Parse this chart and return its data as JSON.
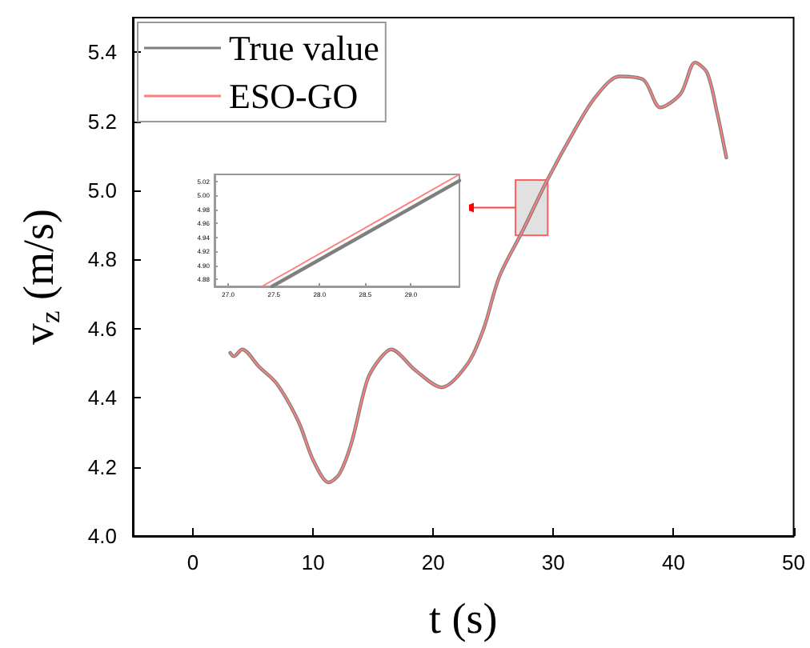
{
  "chart_data": [
    {
      "type": "line",
      "xlabel": "t (s)",
      "ylabel": "v$_{z}$ (m/s)",
      "xlim": [
        -5,
        50
      ],
      "xticks": [
        0,
        10,
        20,
        30,
        40,
        50
      ],
      "ylim": [
        4.0,
        5.5
      ],
      "yticks": [
        {
          "value": 4.0,
          "label": "4.0"
        },
        4.2,
        4.4,
        4.6,
        4.8,
        {
          "value": 5.0,
          "label": "5.0"
        },
        5.2,
        5.4
      ],
      "grid": false,
      "legend": "top left",
      "marker": "none",
      "line_style": "solid",
      "series": [
        {
          "name": "True value",
          "color": "#7f7f7f",
          "x": [
            3.1,
            3.4,
            4.1,
            5.5,
            7.0,
            8.8,
            10.0,
            11.3,
            12.2,
            13.2,
            14.5,
            15.5,
            16.5,
            18.5,
            20.7,
            22.9,
            24.2,
            25.5,
            27.4,
            29.5,
            31.7,
            33.5,
            35.5,
            37.5,
            38.9,
            40.6,
            41.8,
            42.8,
            43.6,
            44.4
          ],
          "values": [
            4.53,
            4.52,
            4.54,
            4.49,
            4.44,
            4.33,
            4.22,
            4.155,
            4.18,
            4.27,
            4.45,
            4.51,
            4.54,
            4.48,
            4.43,
            4.5,
            4.6,
            4.75,
            4.88,
            5.03,
            5.17,
            5.27,
            5.33,
            5.32,
            5.24,
            5.28,
            5.37,
            5.34,
            5.23,
            5.095
          ]
        },
        {
          "name": "ESO-GO",
          "color": "#ff7f7f",
          "x": [
            3.1,
            3.4,
            4.1,
            5.5,
            7.0,
            8.8,
            10.0,
            11.3,
            12.2,
            13.2,
            14.5,
            15.5,
            16.5,
            18.5,
            20.7,
            22.9,
            24.2,
            25.5,
            27.4,
            29.5,
            31.7,
            33.5,
            35.5,
            37.5,
            38.9,
            40.6,
            41.8,
            42.8,
            43.6,
            44.4
          ],
          "values": [
            4.53,
            4.52,
            4.54,
            4.49,
            4.44,
            4.33,
            4.22,
            4.155,
            4.18,
            4.27,
            4.45,
            4.51,
            4.54,
            4.48,
            4.43,
            4.5,
            4.6,
            4.75,
            4.88,
            5.03,
            5.17,
            5.27,
            5.33,
            5.32,
            5.24,
            5.28,
            5.37,
            5.34,
            5.23,
            5.095
          ]
        }
      ]
    },
    {
      "type": "line",
      "xlim": [
        26.85,
        29.53
      ],
      "xticks": [
        {
          "value": 27,
          "label": "27.0"
        },
        27.5,
        {
          "value": 28,
          "label": "28.0"
        },
        28.5,
        {
          "value": 29,
          "label": "29.0"
        }
      ],
      "ylim": [
        4.87,
        5.03
      ],
      "yticks": [
        4.88,
        {
          "value": 4.9,
          "label": "4.90"
        },
        4.92,
        4.94,
        4.96,
        4.98,
        {
          "value": 5.0,
          "label": "5.00"
        },
        5.02
      ],
      "grid": false,
      "legend": false,
      "marker": "none",
      "line_style": "solid",
      "series": [
        {
          "color": "#7f7f7f",
          "x": [
            27.48,
            29.53
          ],
          "values": [
            4.87,
            5.021
          ]
        },
        {
          "color": "#ff7f7f",
          "x": [
            27.37,
            29.53
          ],
          "values": [
            4.87,
            5.03
          ]
        }
      ]
    }
  ]
}
